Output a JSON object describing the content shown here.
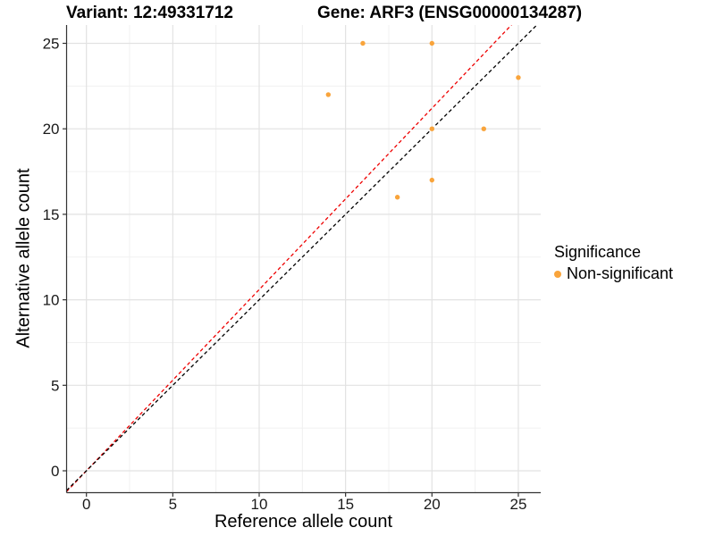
{
  "chart_data": {
    "type": "scatter",
    "title_left": "Variant: 12:49331712",
    "title_right": "Gene: ARF3 (ENSG00000134287)",
    "xlabel": "Reference allele count",
    "ylabel": "Alternative allele count",
    "x_ticks": [
      0,
      5,
      10,
      15,
      20,
      25
    ],
    "y_ticks": [
      0,
      5,
      10,
      15,
      20,
      25
    ],
    "x_minor_ticks": [
      2.5,
      7.5,
      12.5,
      17.5,
      22.5
    ],
    "y_minor_ticks": [
      2.5,
      7.5,
      12.5,
      17.5,
      22.5
    ],
    "xlim": [
      -1.15,
      26.3
    ],
    "ylim": [
      -1.28,
      26.07
    ],
    "grid": true,
    "legend_position": "right",
    "series": [
      {
        "name": "Non-significant",
        "color": "#F9A43B",
        "points": [
          [
            16,
            25
          ],
          [
            20,
            25
          ],
          [
            25,
            23
          ],
          [
            14,
            22
          ],
          [
            20,
            20
          ],
          [
            23,
            20
          ],
          [
            20,
            17
          ],
          [
            18,
            16
          ]
        ]
      }
    ],
    "lines": [
      {
        "label": "fit-line",
        "slope": 1.06,
        "intercept": 0,
        "color": "#EE0000",
        "style": "dashed"
      },
      {
        "label": "identity-line",
        "slope": 1.0,
        "intercept": 0,
        "color": "#000000",
        "style": "dashed"
      }
    ],
    "legend": {
      "title": "Significance",
      "items": [
        {
          "label": "Non-significant",
          "color": "#F9A43B"
        }
      ]
    },
    "colors": {
      "point": "#F9A43B",
      "grid_major": "#E2E2E2",
      "grid_minor": "#F0F0F0",
      "axis_line": "#333333",
      "tick_text": "#1a1a1a",
      "background": "#ffffff"
    }
  }
}
